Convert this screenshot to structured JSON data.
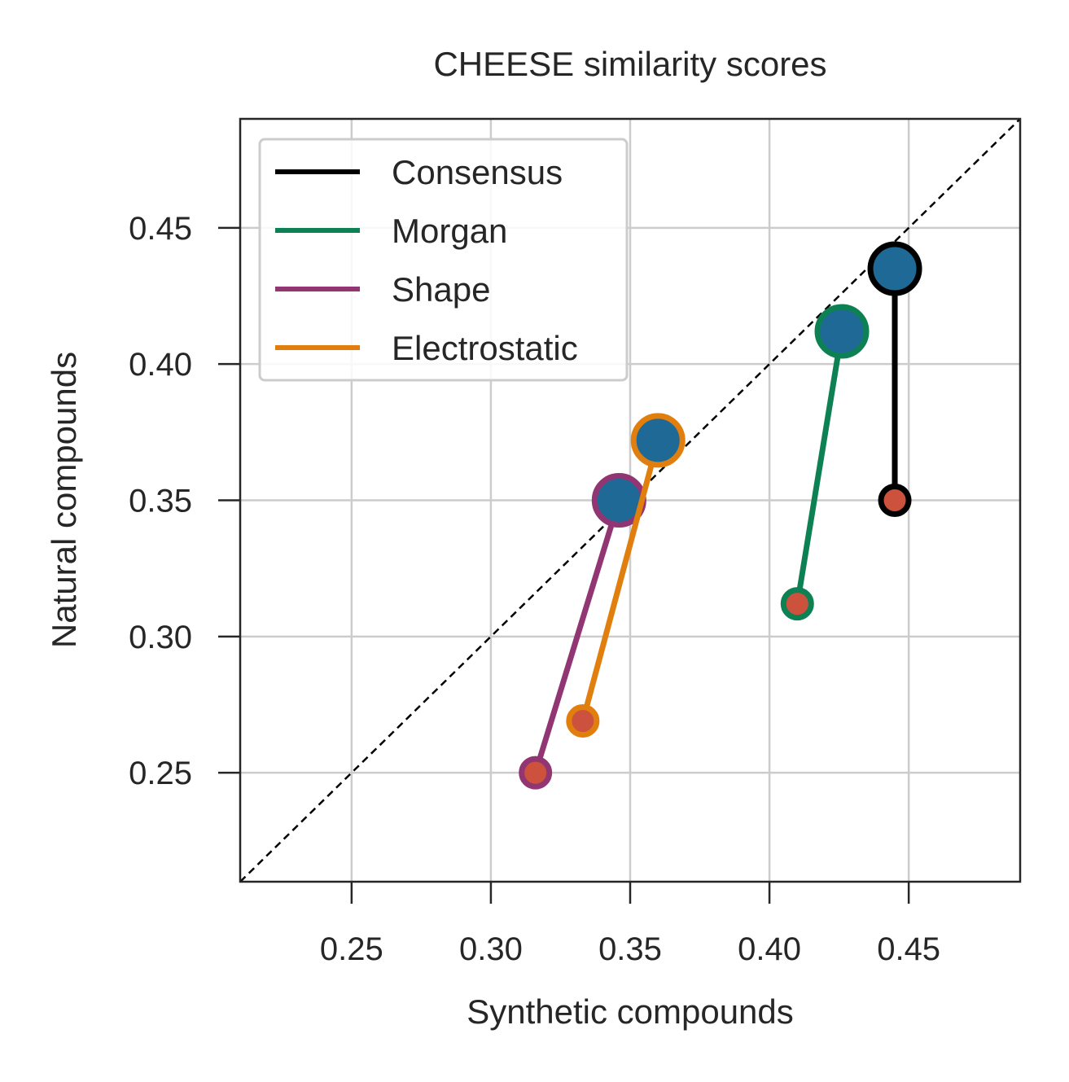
{
  "chart_data": {
    "type": "scatter",
    "title": "CHEESE similarity scores",
    "xlabel": "Synthetic compounds",
    "ylabel": "Natural compounds",
    "xlim": [
      0.21,
      0.49
    ],
    "ylim": [
      0.21,
      0.49
    ],
    "xticks": [
      0.25,
      0.3,
      0.35,
      0.4,
      0.45
    ],
    "yticks": [
      0.25,
      0.3,
      0.35,
      0.4,
      0.45
    ],
    "xtick_labels": [
      "0.25",
      "0.30",
      "0.35",
      "0.40",
      "0.45"
    ],
    "ytick_labels": [
      "0.25",
      "0.30",
      "0.35",
      "0.40",
      "0.45"
    ],
    "grid": true,
    "diagonal_reference_line": true,
    "legend_position": "upper-left",
    "start_marker_color": "#1f6997",
    "end_marker_color": "#cc523d",
    "series": [
      {
        "name": "Consensus",
        "color": "#000000",
        "start": [
          0.445,
          0.435
        ],
        "end": [
          0.445,
          0.35
        ]
      },
      {
        "name": "Morgan",
        "color": "#0e8154",
        "start": [
          0.426,
          0.412
        ],
        "end": [
          0.41,
          0.312
        ]
      },
      {
        "name": "Shape",
        "color": "#923573",
        "start": [
          0.346,
          0.35
        ],
        "end": [
          0.316,
          0.25
        ]
      },
      {
        "name": "Electrostatic",
        "color": "#e17f0e",
        "start": [
          0.36,
          0.372
        ],
        "end": [
          0.333,
          0.269
        ]
      }
    ]
  }
}
